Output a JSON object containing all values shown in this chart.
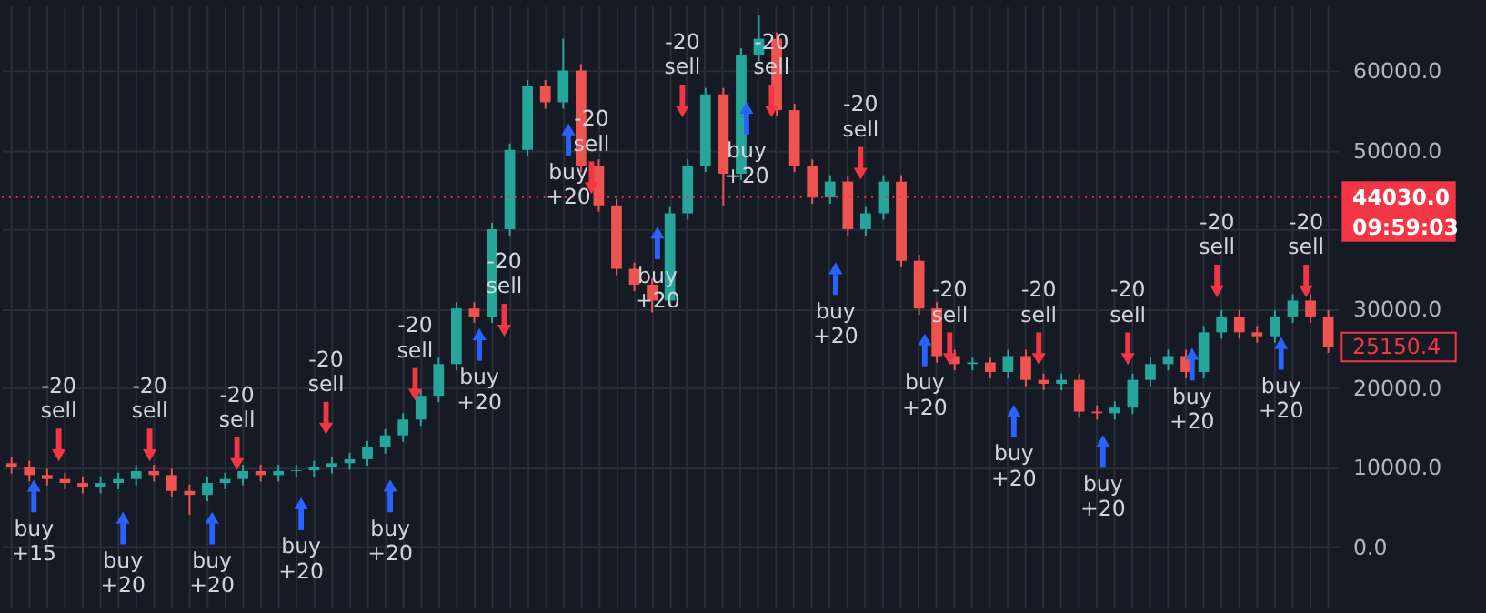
{
  "chart_data": {
    "type": "candlestick",
    "categories": [
      null,
      null,
      null,
      null,
      null,
      null,
      null,
      null,
      null,
      null,
      null,
      null,
      null,
      null,
      null,
      null,
      null,
      null,
      null,
      null,
      null,
      null,
      null,
      null,
      null,
      null,
      null,
      null,
      null,
      null,
      null,
      null,
      null,
      null,
      null,
      null,
      null,
      null,
      null,
      null,
      null,
      null,
      null,
      null,
      null,
      null,
      null,
      null,
      null,
      null,
      null,
      null,
      null,
      null,
      null,
      null,
      null,
      null,
      null,
      null,
      null,
      null,
      null,
      null,
      null,
      null,
      null,
      null,
      null,
      null,
      null,
      null,
      null,
      null,
      null
    ],
    "ohlc": [
      [
        10500,
        11300,
        9200,
        10000
      ],
      [
        10000,
        10800,
        8200,
        9000
      ],
      [
        9000,
        9800,
        7700,
        8500
      ],
      [
        8500,
        9300,
        7200,
        8000
      ],
      [
        8000,
        8800,
        6700,
        7500
      ],
      [
        7500,
        8800,
        6700,
        8000
      ],
      [
        8000,
        9300,
        7200,
        8500
      ],
      [
        8500,
        10300,
        7700,
        9500
      ],
      [
        9500,
        10300,
        8200,
        9000
      ],
      [
        9000,
        9800,
        6200,
        7000
      ],
      [
        7000,
        7800,
        4000,
        6500
      ],
      [
        6500,
        8800,
        5700,
        8000
      ],
      [
        8000,
        9300,
        7200,
        8500
      ],
      [
        8500,
        10300,
        7700,
        9500
      ],
      [
        9500,
        10300,
        8200,
        9000
      ],
      [
        9000,
        10300,
        8200,
        9500
      ],
      [
        9500,
        10300,
        8700,
        9600
      ],
      [
        9600,
        10800,
        8700,
        10000
      ],
      [
        10000,
        11300,
        9200,
        10500
      ],
      [
        10500,
        11800,
        9700,
        11000
      ],
      [
        11000,
        13300,
        10200,
        12500
      ],
      [
        12500,
        14800,
        11700,
        14000
      ],
      [
        14000,
        16800,
        13200,
        16000
      ],
      [
        16000,
        19800,
        15200,
        19000
      ],
      [
        19000,
        23800,
        18200,
        23000
      ],
      [
        23000,
        30800,
        22200,
        30000
      ],
      [
        30000,
        30800,
        28200,
        29000
      ],
      [
        29000,
        40800,
        28200,
        40000
      ],
      [
        40000,
        50800,
        39200,
        50000
      ],
      [
        50000,
        58800,
        49200,
        58000
      ],
      [
        58000,
        58800,
        55200,
        56000
      ],
      [
        56000,
        64000,
        55200,
        60000
      ],
      [
        60000,
        60800,
        47200,
        48000
      ],
      [
        48000,
        48800,
        42200,
        43000
      ],
      [
        43000,
        43800,
        34200,
        35000
      ],
      [
        35000,
        35800,
        32200,
        33000
      ],
      [
        33000,
        33800,
        29500,
        31000
      ],
      [
        31000,
        42800,
        30200,
        42000
      ],
      [
        42000,
        48800,
        41200,
        48000
      ],
      [
        48000,
        57800,
        47200,
        57000
      ],
      [
        57000,
        57800,
        43000,
        47000
      ],
      [
        47000,
        62800,
        46200,
        62000
      ],
      [
        62000,
        67000,
        61200,
        64000
      ],
      [
        64000,
        64800,
        54200,
        55000
      ],
      [
        55000,
        55800,
        47200,
        48000
      ],
      [
        48000,
        48800,
        43200,
        44000
      ],
      [
        44000,
        46800,
        43200,
        46000
      ],
      [
        46000,
        46800,
        39200,
        40000
      ],
      [
        40000,
        42800,
        39200,
        42000
      ],
      [
        42000,
        46800,
        41200,
        46000
      ],
      [
        46000,
        46800,
        35200,
        36000
      ],
      [
        36000,
        36800,
        29200,
        30000
      ],
      [
        30000,
        30800,
        23200,
        24000
      ],
      [
        24000,
        24800,
        22200,
        23000
      ],
      [
        23000,
        23800,
        22200,
        23200
      ],
      [
        23200,
        23800,
        21200,
        22000
      ],
      [
        22000,
        24800,
        21200,
        24000
      ],
      [
        24000,
        24800,
        20200,
        21000
      ],
      [
        21000,
        21800,
        19700,
        20500
      ],
      [
        20500,
        21800,
        19700,
        21000
      ],
      [
        21000,
        21800,
        16200,
        17000
      ],
      [
        17000,
        17800,
        16000,
        16800
      ],
      [
        16800,
        18300,
        16000,
        17500
      ],
      [
        17500,
        21800,
        16700,
        21000
      ],
      [
        21000,
        23800,
        20200,
        23000
      ],
      [
        23000,
        24800,
        22200,
        24000
      ],
      [
        24000,
        24800,
        21200,
        22000
      ],
      [
        22000,
        27800,
        21200,
        27000
      ],
      [
        27000,
        29800,
        26200,
        29000
      ],
      [
        29000,
        29800,
        26200,
        27000
      ],
      [
        27000,
        27800,
        25700,
        26500
      ],
      [
        26500,
        29800,
        25700,
        29000
      ],
      [
        29000,
        31800,
        28200,
        31000
      ],
      [
        31000,
        31800,
        28200,
        29000
      ],
      [
        29000,
        29800,
        24400,
        25150
      ]
    ],
    "ylim": [
      -7600,
      68100
    ],
    "yticks": [
      {
        "value": 0,
        "label": "0.0"
      },
      {
        "value": 10000,
        "label": "10000.0"
      },
      {
        "value": 20000,
        "label": "20000.0"
      },
      {
        "value": 30000,
        "label": "30000.0"
      },
      {
        "value": 40000,
        "label": null
      },
      {
        "value": 50000,
        "label": "50000.0"
      },
      {
        "value": 60000,
        "label": "60000.0"
      }
    ],
    "grid": true,
    "tick_labels": "y",
    "ref_lines": [
      {
        "axis": "y",
        "value": 44030,
        "label": "44030.0",
        "color": "#f23645",
        "line_style": "dotted"
      }
    ],
    "annotations": [
      "buy\n+15",
      "-20\nsell",
      "buy\n+20",
      "-20\nsell",
      "buy\n+20",
      "-20\nsell",
      "buy\n+20",
      "-20\nsell",
      "buy\n+20",
      "-20\nsell",
      "buy\n+20",
      "-20\nsell",
      "buy\n+20",
      "-20\nsell",
      "buy\n+20",
      "-20\nsell",
      "buy\n+20",
      "-20\nsell",
      "buy\n+20",
      "-20\nsell",
      "buy\n+20",
      "-20\nsell",
      "buy\n+20",
      "-20\nsell",
      "buy\n+20",
      "-20\nsell",
      "buy\n+20",
      "-20\nsell",
      "buy\n+20",
      "-20\nsell",
      "09:59:03",
      "25150.4"
    ]
  }
}
